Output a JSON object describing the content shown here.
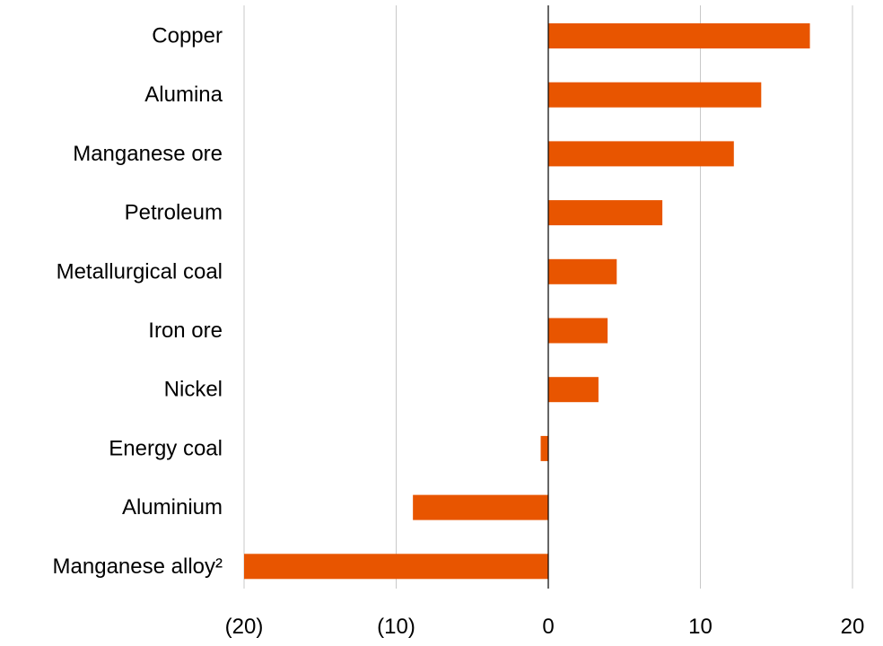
{
  "chart_data": {
    "type": "bar",
    "orientation": "horizontal",
    "categories": [
      "Copper",
      "Alumina",
      "Manganese ore",
      "Petroleum",
      "Metallurgical coal",
      "Iron ore",
      "Nickel",
      "Energy coal",
      "Aluminium",
      "Manganese alloy²"
    ],
    "values": [
      17.2,
      14.0,
      12.2,
      7.5,
      4.5,
      3.9,
      3.3,
      -0.5,
      -8.9,
      -20.0
    ],
    "xlim": [
      -20,
      20
    ],
    "xticks": [
      -20,
      -10,
      0,
      10,
      20
    ],
    "xtick_labels": [
      "(20)",
      "(10)",
      "0",
      "10",
      "20"
    ],
    "grid": true,
    "legend": "none",
    "bar_color": "#e85500"
  }
}
